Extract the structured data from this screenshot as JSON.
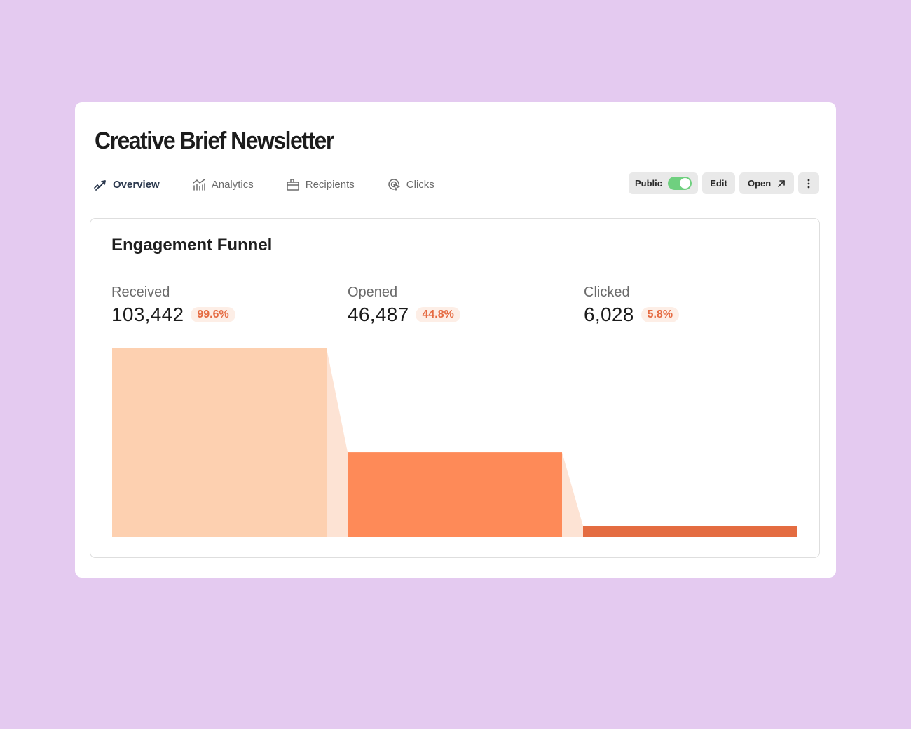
{
  "page": {
    "title": "Creative Brief Newsletter"
  },
  "tabs": [
    {
      "label": "Overview",
      "icon": "overview-trend-icon",
      "active": true
    },
    {
      "label": "Analytics",
      "icon": "analytics-chart-icon",
      "active": false
    },
    {
      "label": "Recipients",
      "icon": "recipients-inbox-icon",
      "active": false
    },
    {
      "label": "Clicks",
      "icon": "clicks-cursor-icon",
      "active": false
    }
  ],
  "actions": {
    "public_label": "Public",
    "public_enabled": true,
    "edit_label": "Edit",
    "open_label": "Open",
    "more_icon": "vertical-dots-icon"
  },
  "colors": {
    "background": "#e4caf0",
    "accent_text": "#e56b42",
    "toggle_on": "#6fd07f",
    "bar_received": "#fdd0b0",
    "bar_opened": "#fe8a58",
    "bar_clicked": "#e46c41",
    "connector": "#fde3d4"
  },
  "funnel": {
    "title": "Engagement Funnel",
    "stages": [
      {
        "label": "Received",
        "value": "103,442",
        "percent": "99.6%"
      },
      {
        "label": "Opened",
        "value": "46,487",
        "percent": "44.8%"
      },
      {
        "label": "Clicked",
        "value": "6,028",
        "percent": "5.8%"
      }
    ]
  },
  "chart_data": {
    "type": "bar",
    "title": "Engagement Funnel",
    "categories": [
      "Received",
      "Opened",
      "Clicked"
    ],
    "values": [
      103442,
      46487,
      6028
    ],
    "percentages": [
      99.6,
      44.8,
      5.8
    ],
    "xlabel": "",
    "ylabel": "",
    "grid": false
  }
}
